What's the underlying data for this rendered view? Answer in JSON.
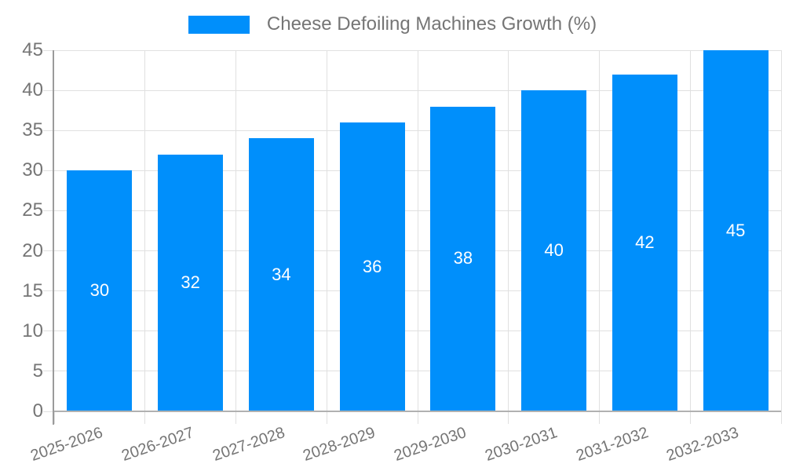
{
  "legend": {
    "label": "Cheese Defoiling Machines Growth (%)"
  },
  "colors": {
    "bar": "#008FFB",
    "grid": "#e0e0e0",
    "axis_y": "#9b9b9b",
    "axis_x": "#b1b1b1",
    "text": "#757575",
    "value_label": "#ffffff",
    "background": "#ffffff"
  },
  "chart_data": {
    "type": "bar",
    "title": "Cheese Defoiling Machines Growth (%)",
    "categories": [
      "2025-2026",
      "2026-2027",
      "2027-2028",
      "2028-2029",
      "2029-2030",
      "2030-2031",
      "2031-2032",
      "2032-2033"
    ],
    "values": [
      30,
      32,
      34,
      36,
      38,
      40,
      42,
      45
    ],
    "series": [
      {
        "name": "Cheese Defoiling Machines Growth (%)",
        "values": [
          30,
          32,
          34,
          36,
          38,
          40,
          42,
          45
        ]
      }
    ],
    "xlabel": "",
    "ylabel": "",
    "ylim": [
      0,
      45
    ],
    "yticks": [
      0,
      5,
      10,
      15,
      20,
      25,
      30,
      35,
      40,
      45
    ],
    "grid": true,
    "legend_position": "top-center",
    "value_labels": "inside-center",
    "x_label_rotation_deg": -19
  }
}
